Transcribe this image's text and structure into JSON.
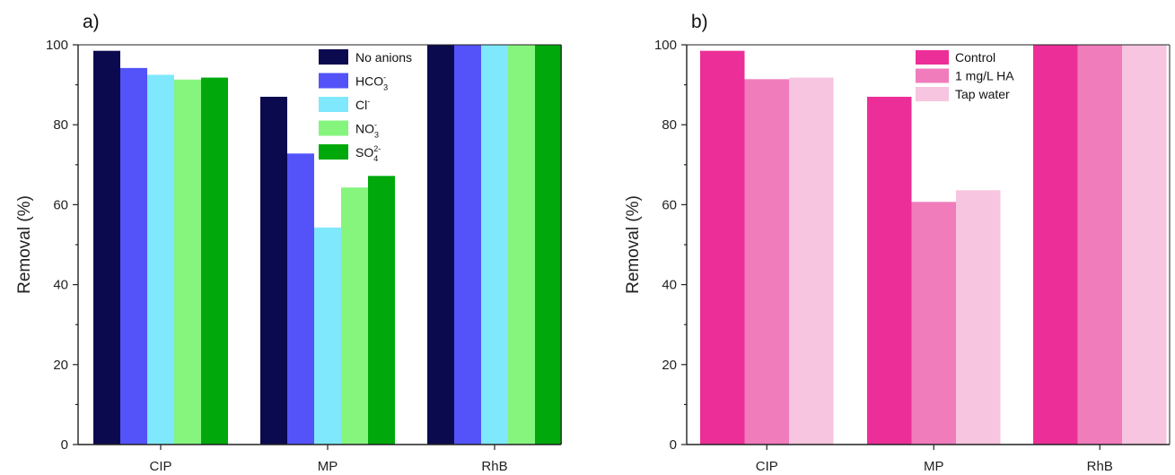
{
  "chart_data": [
    {
      "type": "bar",
      "panel_label": "a)",
      "ylabel": "Removal (%)",
      "xlabel": "",
      "ylim": [
        0,
        100
      ],
      "yticks": [
        "0",
        "20",
        "40",
        "60",
        "80",
        "100"
      ],
      "categories": [
        "CIP",
        "MP",
        "RhB"
      ],
      "legend_position": "top-right",
      "grid": false,
      "series": [
        {
          "name": "No anions",
          "name_base": "No anions",
          "sub": "",
          "sup": "",
          "color": "#0b0a4f",
          "values": [
            98.5,
            87,
            100
          ]
        },
        {
          "name": "HCO3-",
          "name_base": "HCO",
          "sub": "3",
          "sup": "-",
          "color": "#5353f9",
          "values": [
            94.2,
            72.8,
            100
          ]
        },
        {
          "name": "Cl-",
          "name_base": "Cl",
          "sub": "",
          "sup": "-",
          "color": "#7fe8fc",
          "values": [
            92.5,
            54.3,
            100
          ]
        },
        {
          "name": "NO3-",
          "name_base": "NO",
          "sub": "3",
          "sup": "-",
          "color": "#86f57e",
          "values": [
            91.3,
            64.3,
            100
          ]
        },
        {
          "name": "SO4 2-",
          "name_base": "SO",
          "sub": "4",
          "sup": "2-",
          "color": "#00a80c",
          "values": [
            91.8,
            67.2,
            100
          ]
        }
      ]
    },
    {
      "type": "bar",
      "panel_label": "b)",
      "ylabel": "Removal (%)",
      "xlabel": "",
      "ylim": [
        0,
        100
      ],
      "yticks": [
        "0",
        "20",
        "40",
        "60",
        "80",
        "100"
      ],
      "categories": [
        "CIP",
        "MP",
        "RhB"
      ],
      "legend_position": "top-right",
      "grid": false,
      "series": [
        {
          "name": "Control",
          "name_base": "Control",
          "sub": "",
          "sup": "",
          "color": "#ec2f98",
          "values": [
            98.5,
            87,
            100
          ]
        },
        {
          "name": "1 mg/L HA",
          "name_base": "1 mg/L HA",
          "sub": "",
          "sup": "",
          "color": "#f07cbc",
          "values": [
            91.4,
            60.7,
            100
          ]
        },
        {
          "name": "Tap water",
          "name_base": "Tap water",
          "sub": "",
          "sup": "",
          "color": "#f7c5df",
          "values": [
            91.8,
            63.6,
            100
          ]
        }
      ]
    }
  ]
}
